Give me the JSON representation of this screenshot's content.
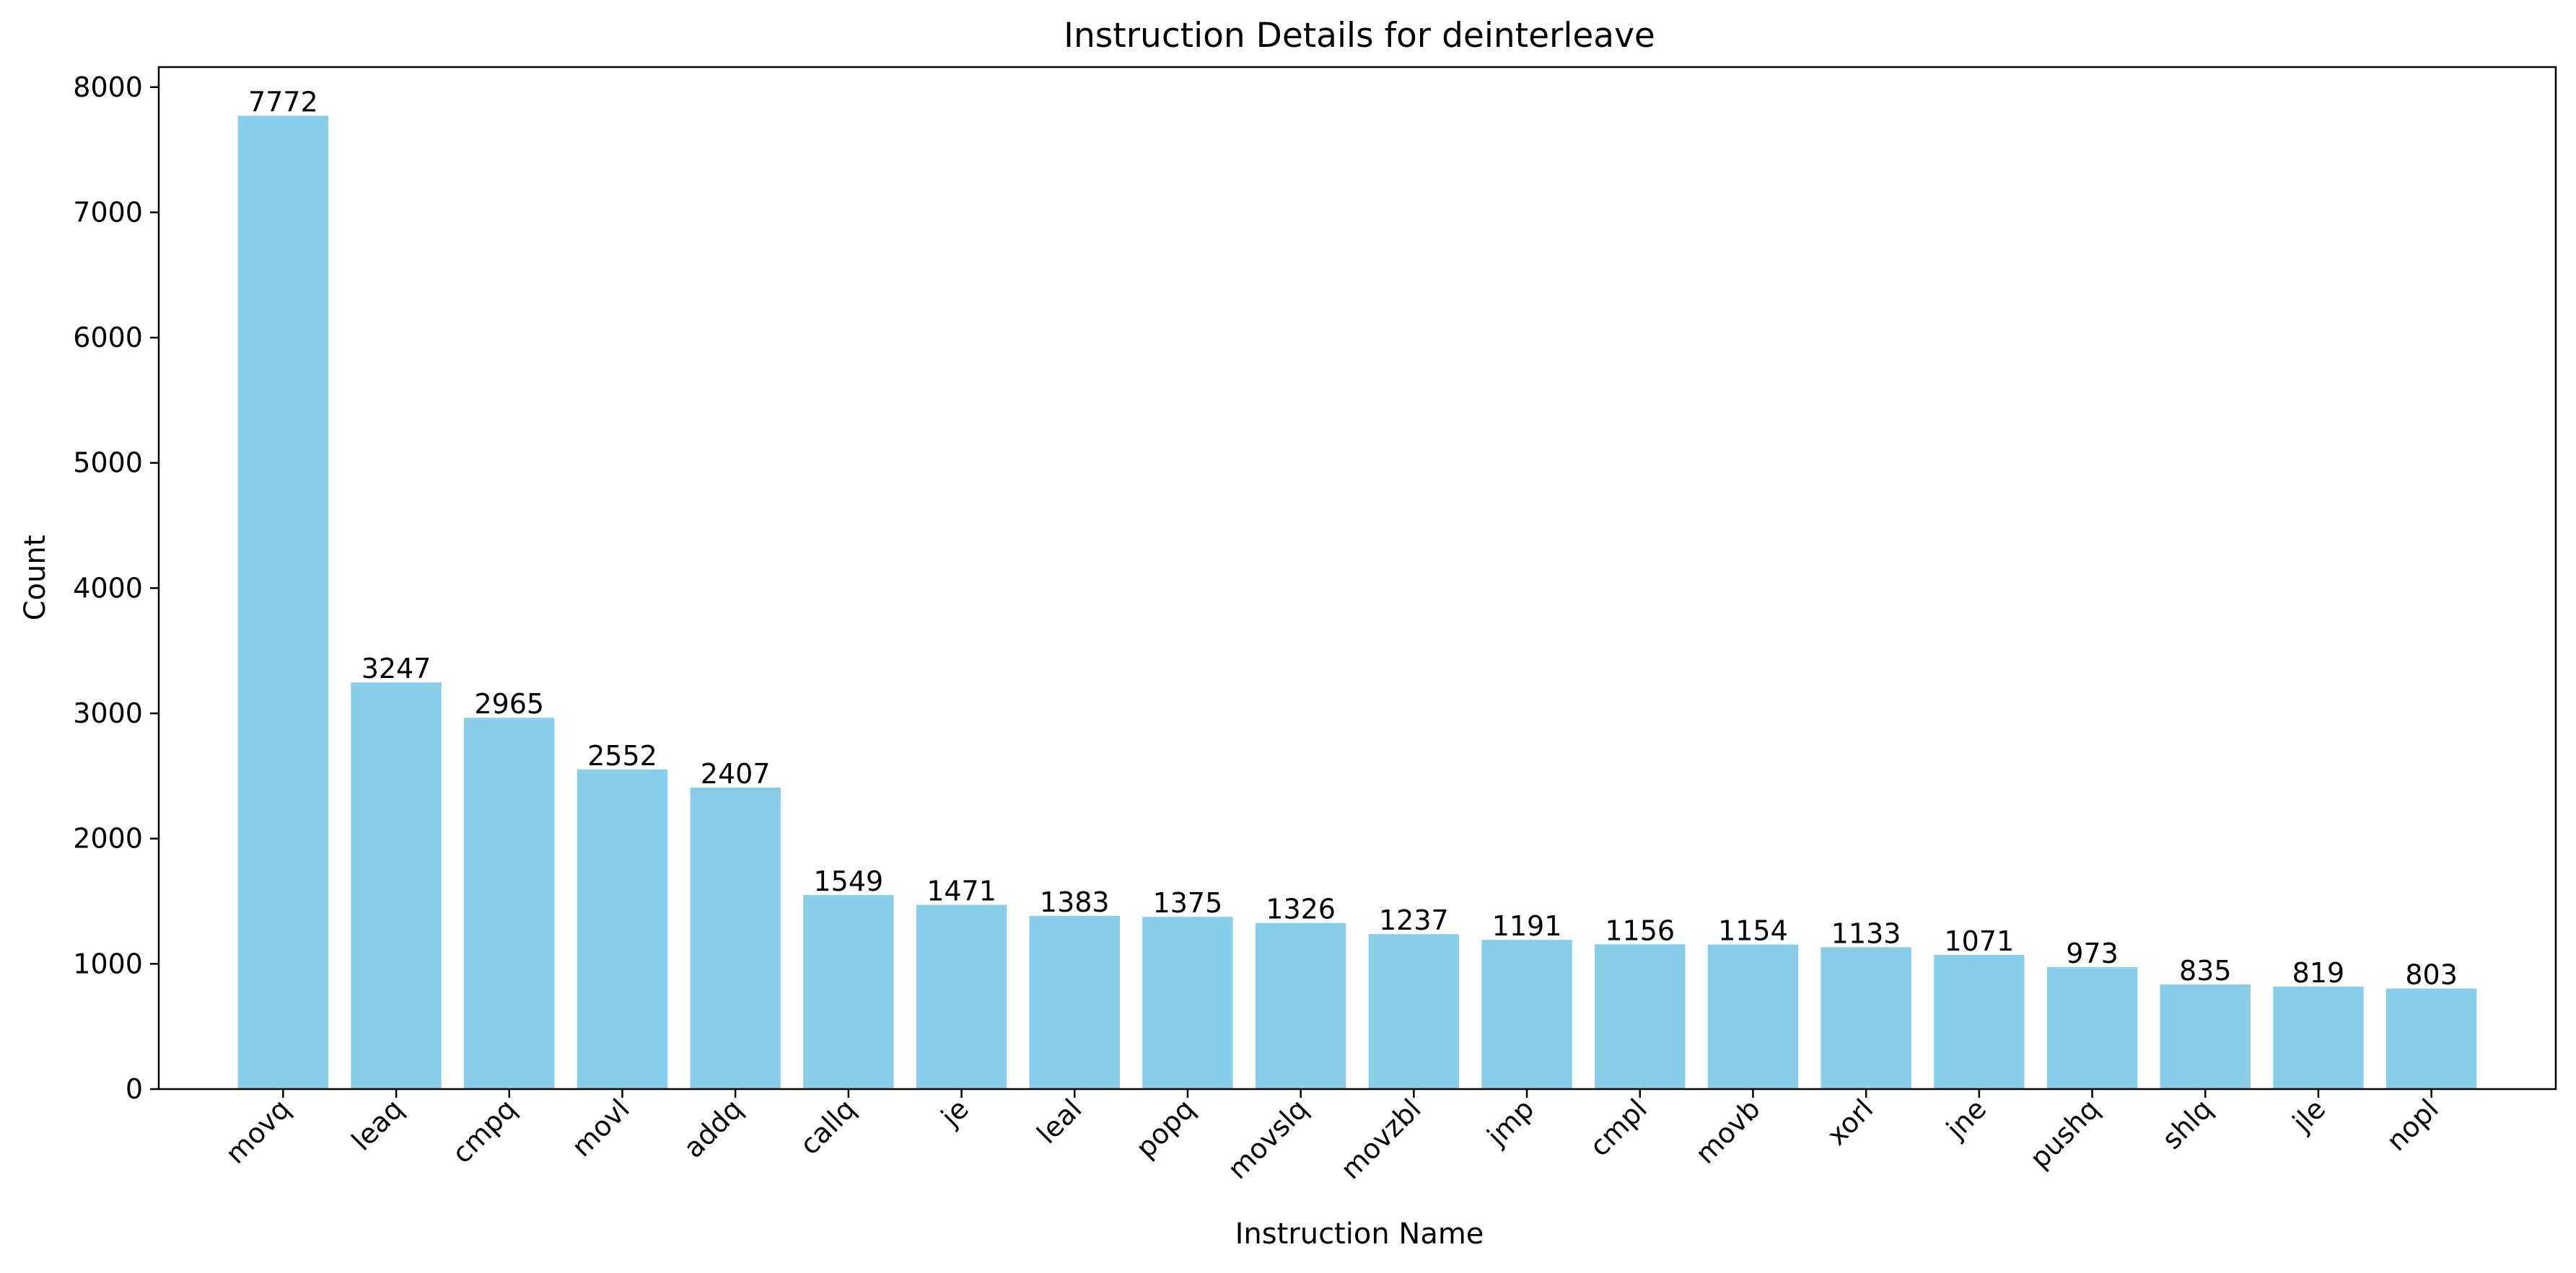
{
  "chart_data": {
    "type": "bar",
    "title": "Instruction Details for deinterleave",
    "xlabel": "Instruction Name",
    "ylabel": "Count",
    "categories": [
      "movq",
      "leaq",
      "cmpq",
      "movl",
      "addq",
      "callq",
      "je",
      "leal",
      "popq",
      "movslq",
      "movzbl",
      "jmp",
      "cmpl",
      "movb",
      "xorl",
      "jne",
      "pushq",
      "shlq",
      "jle",
      "nopl"
    ],
    "values": [
      7772,
      3247,
      2965,
      2552,
      2407,
      1549,
      1471,
      1383,
      1375,
      1326,
      1237,
      1191,
      1156,
      1154,
      1133,
      1071,
      973,
      835,
      819,
      803
    ],
    "ylim": [
      0,
      8160
    ],
    "yticks": [
      0,
      1000,
      2000,
      3000,
      4000,
      5000,
      6000,
      7000,
      8000
    ],
    "bar_color": "#87CEEB",
    "grid": false
  }
}
